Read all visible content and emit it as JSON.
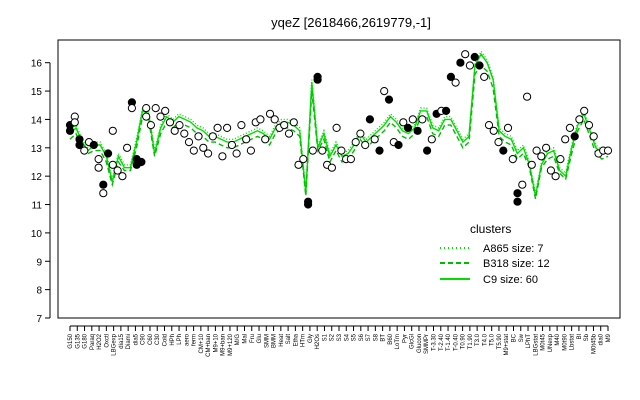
{
  "chart_data": {
    "type": "line",
    "title": "yqeZ [2618466,2619779,-1]",
    "xlabel": "",
    "ylabel": "",
    "ylim": [
      7,
      16.8
    ],
    "yticks": [
      7,
      8,
      9,
      10,
      11,
      12,
      13,
      14,
      15,
      16
    ],
    "grid": false,
    "x_tick_labels": [
      "G150",
      "G135",
      "G180",
      "Paraq",
      "H2O2",
      "Oxctl",
      "LBGexp",
      "dia15",
      "Diami",
      "dia5",
      "C90",
      "C60",
      "C30",
      "Cold",
      "HPh",
      "LPh",
      "aero",
      "ferm",
      "CM+10",
      "CM+ban",
      "M9+10",
      "M9+ban",
      "M9+120",
      "M/G",
      "Mal",
      "Fru",
      "Glu",
      "SMM",
      "BMM",
      "Heat",
      "Salt",
      "Etha",
      "HTm",
      "Gly",
      "H2Os",
      "S1",
      "S2",
      "S3",
      "S4",
      "S5",
      "S6",
      "S7",
      "S8",
      "BT",
      "B60",
      "LoTm",
      "Pyr",
      "GlcGl",
      "Glucon",
      "SMMPr",
      "T-3.30",
      "T-2.40",
      "T-1.40",
      "T-0.40",
      "T0.90",
      "T1.90",
      "T3.0",
      "T4.0",
      "T5.0",
      "T5.90",
      "M9+stat",
      "BC",
      "Sw",
      "LPhT",
      "LBGstat",
      "M0t45",
      "UNexp",
      "M40",
      "M0t90",
      "Lbstat",
      "Bl",
      "Sb",
      "M0t45b",
      "dia0",
      "M9"
    ],
    "series": [
      {
        "style": "solid",
        "color": "#00dd00",
        "values": [
          13.5,
          13.7,
          13.2,
          12.9,
          13.1,
          13.1,
          12.7,
          11.8,
          12.7,
          12.3,
          12.3,
          13.2,
          14.3,
          14.2,
          12.8,
          13.7,
          14.1,
          13.9,
          14.1,
          14.0,
          13.9,
          13.7,
          13.6,
          13.4,
          13.4,
          13.3,
          13.2,
          13.2,
          13.3,
          13.4,
          13.5,
          13.6,
          13.5,
          13.3,
          13.7,
          13.9,
          13.9,
          13.8,
          13.6,
          11.4,
          15.3,
          13.0,
          13.5,
          12.7,
          13.1,
          12.7,
          12.8,
          13.1,
          13.5,
          13.2,
          13.4,
          13.6,
          13.8,
          14.1,
          13.9,
          13.6,
          13.5,
          13.7,
          14.3,
          14.3,
          13.7,
          13.6,
          14.0,
          14.0,
          13.6,
          13.2,
          13.4,
          15.9,
          16.3,
          16.0,
          15.4,
          13.6,
          13.4,
          13.3,
          12.8,
          13.0,
          12.4,
          11.3,
          12.4,
          12.8,
          12.9,
          12.2,
          12.0,
          13.0,
          13.8,
          14.2,
          13.6,
          13.0,
          12.8,
          12.9
        ]
      },
      {
        "style": "dashed",
        "color": "#00bb00",
        "values": [
          13.3,
          13.5,
          13.0,
          12.8,
          12.9,
          12.9,
          12.5,
          11.7,
          12.5,
          12.2,
          12.2,
          13.0,
          14.1,
          14.0,
          12.7,
          13.5,
          13.9,
          13.7,
          13.9,
          13.8,
          13.7,
          13.5,
          13.4,
          13.2,
          13.2,
          13.1,
          13.0,
          13.0,
          13.1,
          13.2,
          13.3,
          13.4,
          13.3,
          13.1,
          13.5,
          13.7,
          13.7,
          13.6,
          13.4,
          11.3,
          15.0,
          12.9,
          13.3,
          12.5,
          12.9,
          12.5,
          12.6,
          12.9,
          13.3,
          13.0,
          13.2,
          13.4,
          13.6,
          13.9,
          13.7,
          13.4,
          13.3,
          13.5,
          14.1,
          14.1,
          13.5,
          13.4,
          13.8,
          13.8,
          13.4,
          13.0,
          13.2,
          15.6,
          15.9,
          15.7,
          15.1,
          13.4,
          13.2,
          13.1,
          12.6,
          12.8,
          12.3,
          11.2,
          12.3,
          12.6,
          12.7,
          12.1,
          11.9,
          12.8,
          13.6,
          14.0,
          13.4,
          12.8,
          12.6,
          12.7
        ]
      },
      {
        "style": "dotted",
        "color": "#00dd00",
        "values": [
          13.6,
          13.8,
          13.3,
          13.0,
          13.2,
          13.2,
          12.8,
          11.9,
          12.8,
          12.4,
          12.4,
          13.3,
          14.4,
          14.3,
          12.9,
          13.8,
          14.2,
          14.0,
          14.2,
          14.1,
          14.0,
          13.8,
          13.7,
          13.5,
          13.5,
          13.4,
          13.3,
          13.3,
          13.4,
          13.5,
          13.6,
          13.7,
          13.6,
          13.4,
          13.8,
          14.0,
          14.0,
          13.9,
          13.7,
          11.5,
          15.4,
          13.1,
          13.6,
          12.8,
          13.2,
          12.8,
          12.9,
          13.2,
          13.6,
          13.3,
          13.5,
          13.7,
          13.9,
          14.2,
          14.0,
          13.7,
          13.6,
          13.8,
          14.4,
          14.4,
          13.8,
          13.7,
          14.1,
          14.1,
          13.7,
          13.3,
          13.5,
          16.0,
          16.4,
          16.1,
          15.5,
          13.7,
          13.5,
          13.4,
          12.9,
          13.1,
          12.5,
          11.4,
          12.5,
          12.9,
          13.0,
          12.3,
          12.1,
          13.1,
          13.9,
          14.3,
          13.7,
          13.1,
          12.9,
          13.0
        ]
      }
    ],
    "points": [
      {
        "x": 1,
        "y": 13.8,
        "f": true
      },
      {
        "x": 1,
        "y": 13.6,
        "f": true
      },
      {
        "x": 2,
        "y": 14.1,
        "f": false
      },
      {
        "x": 2,
        "y": 13.9,
        "f": false
      },
      {
        "x": 3,
        "y": 13.1,
        "f": true
      },
      {
        "x": 3,
        "y": 13.3,
        "f": true
      },
      {
        "x": 4,
        "y": 12.9,
        "f": false
      },
      {
        "x": 5,
        "y": 13.2,
        "f": false
      },
      {
        "x": 6,
        "y": 13.1,
        "f": true
      },
      {
        "x": 7,
        "y": 12.6,
        "f": false
      },
      {
        "x": 7,
        "y": 12.3,
        "f": false
      },
      {
        "x": 8,
        "y": 11.4,
        "f": false
      },
      {
        "x": 8,
        "y": 11.7,
        "f": true
      },
      {
        "x": 9,
        "y": 12.8,
        "f": true
      },
      {
        "x": 10,
        "y": 12.4,
        "f": false
      },
      {
        "x": 10,
        "y": 13.6,
        "f": false
      },
      {
        "x": 11,
        "y": 12.2,
        "f": false
      },
      {
        "x": 12,
        "y": 12.0,
        "f": false
      },
      {
        "x": 13,
        "y": 13.0,
        "f": false
      },
      {
        "x": 14,
        "y": 14.6,
        "f": true
      },
      {
        "x": 14,
        "y": 14.4,
        "f": false
      },
      {
        "x": 15,
        "y": 12.6,
        "f": true
      },
      {
        "x": 15,
        "y": 12.4,
        "f": true
      },
      {
        "x": 16,
        "y": 12.5,
        "f": true
      },
      {
        "x": 17,
        "y": 14.4,
        "f": false
      },
      {
        "x": 17,
        "y": 14.1,
        "f": false
      },
      {
        "x": 18,
        "y": 13.8,
        "f": false
      },
      {
        "x": 19,
        "y": 14.4,
        "f": false
      },
      {
        "x": 20,
        "y": 14.1,
        "f": false
      },
      {
        "x": 21,
        "y": 14.3,
        "f": false
      },
      {
        "x": 22,
        "y": 13.9,
        "f": false
      },
      {
        "x": 23,
        "y": 13.6,
        "f": false
      },
      {
        "x": 24,
        "y": 13.8,
        "f": false
      },
      {
        "x": 25,
        "y": 13.5,
        "f": false
      },
      {
        "x": 26,
        "y": 13.2,
        "f": false
      },
      {
        "x": 27,
        "y": 12.9,
        "f": false
      },
      {
        "x": 28,
        "y": 13.4,
        "f": false
      },
      {
        "x": 29,
        "y": 13.0,
        "f": false
      },
      {
        "x": 30,
        "y": 12.8,
        "f": false
      },
      {
        "x": 31,
        "y": 13.4,
        "f": false
      },
      {
        "x": 32,
        "y": 13.7,
        "f": false
      },
      {
        "x": 33,
        "y": 12.7,
        "f": false
      },
      {
        "x": 34,
        "y": 13.7,
        "f": false
      },
      {
        "x": 35,
        "y": 13.1,
        "f": false
      },
      {
        "x": 36,
        "y": 12.8,
        "f": false
      },
      {
        "x": 37,
        "y": 13.8,
        "f": false
      },
      {
        "x": 38,
        "y": 13.3,
        "f": false
      },
      {
        "x": 39,
        "y": 12.9,
        "f": false
      },
      {
        "x": 40,
        "y": 13.9,
        "f": false
      },
      {
        "x": 41,
        "y": 14.0,
        "f": false
      },
      {
        "x": 42,
        "y": 13.3,
        "f": false
      },
      {
        "x": 43,
        "y": 14.2,
        "f": false
      },
      {
        "x": 44,
        "y": 14.0,
        "f": false
      },
      {
        "x": 45,
        "y": 13.7,
        "f": false
      },
      {
        "x": 46,
        "y": 13.8,
        "f": false
      },
      {
        "x": 47,
        "y": 13.5,
        "f": false
      },
      {
        "x": 48,
        "y": 13.9,
        "f": false
      },
      {
        "x": 49,
        "y": 12.4,
        "f": false
      },
      {
        "x": 50,
        "y": 12.6,
        "f": false
      },
      {
        "x": 51,
        "y": 11.1,
        "f": true
      },
      {
        "x": 51,
        "y": 11.0,
        "f": true
      },
      {
        "x": 52,
        "y": 12.9,
        "f": false
      },
      {
        "x": 53,
        "y": 15.5,
        "f": true
      },
      {
        "x": 53,
        "y": 15.4,
        "f": true
      },
      {
        "x": 54,
        "y": 12.9,
        "f": false
      },
      {
        "x": 55,
        "y": 12.4,
        "f": false
      },
      {
        "x": 56,
        "y": 12.3,
        "f": false
      },
      {
        "x": 57,
        "y": 13.7,
        "f": false
      },
      {
        "x": 58,
        "y": 12.9,
        "f": false
      },
      {
        "x": 59,
        "y": 12.6,
        "f": false
      },
      {
        "x": 60,
        "y": 12.6,
        "f": false
      },
      {
        "x": 61,
        "y": 13.2,
        "f": false
      },
      {
        "x": 62,
        "y": 13.5,
        "f": false
      },
      {
        "x": 63,
        "y": 13.1,
        "f": false
      },
      {
        "x": 64,
        "y": 14.0,
        "f": true
      },
      {
        "x": 65,
        "y": 13.3,
        "f": false
      },
      {
        "x": 66,
        "y": 12.9,
        "f": true
      },
      {
        "x": 67,
        "y": 15.0,
        "f": false
      },
      {
        "x": 68,
        "y": 14.7,
        "f": true
      },
      {
        "x": 69,
        "y": 13.2,
        "f": false
      },
      {
        "x": 70,
        "y": 13.1,
        "f": true
      },
      {
        "x": 71,
        "y": 13.9,
        "f": false
      },
      {
        "x": 72,
        "y": 13.7,
        "f": true
      },
      {
        "x": 73,
        "y": 14.0,
        "f": false
      },
      {
        "x": 74,
        "y": 13.6,
        "f": true
      },
      {
        "x": 75,
        "y": 14.0,
        "f": false
      },
      {
        "x": 76,
        "y": 12.9,
        "f": true
      },
      {
        "x": 77,
        "y": 13.3,
        "f": false
      },
      {
        "x": 78,
        "y": 14.2,
        "f": true
      },
      {
        "x": 79,
        "y": 14.3,
        "f": false
      },
      {
        "x": 80,
        "y": 14.3,
        "f": true
      },
      {
        "x": 81,
        "y": 15.5,
        "f": true
      },
      {
        "x": 82,
        "y": 15.3,
        "f": false
      },
      {
        "x": 83,
        "y": 16.0,
        "f": true
      },
      {
        "x": 84,
        "y": 16.3,
        "f": false
      },
      {
        "x": 85,
        "y": 15.9,
        "f": false
      },
      {
        "x": 86,
        "y": 16.2,
        "f": true
      },
      {
        "x": 87,
        "y": 15.9,
        "f": true
      },
      {
        "x": 88,
        "y": 15.5,
        "f": false
      },
      {
        "x": 89,
        "y": 13.8,
        "f": false
      },
      {
        "x": 90,
        "y": 13.6,
        "f": false
      },
      {
        "x": 91,
        "y": 13.2,
        "f": false
      },
      {
        "x": 92,
        "y": 12.9,
        "f": true
      },
      {
        "x": 93,
        "y": 13.7,
        "f": false
      },
      {
        "x": 94,
        "y": 12.6,
        "f": false
      },
      {
        "x": 95,
        "y": 11.4,
        "f": true
      },
      {
        "x": 95,
        "y": 11.1,
        "f": true
      },
      {
        "x": 96,
        "y": 11.7,
        "f": false
      },
      {
        "x": 97,
        "y": 14.8,
        "f": false
      },
      {
        "x": 98,
        "y": 12.4,
        "f": false
      },
      {
        "x": 99,
        "y": 12.9,
        "f": false
      },
      {
        "x": 100,
        "y": 12.7,
        "f": false
      },
      {
        "x": 101,
        "y": 13.0,
        "f": false
      },
      {
        "x": 102,
        "y": 12.2,
        "f": false
      },
      {
        "x": 103,
        "y": 12.0,
        "f": false
      },
      {
        "x": 104,
        "y": 12.6,
        "f": false
      },
      {
        "x": 105,
        "y": 13.3,
        "f": false
      },
      {
        "x": 106,
        "y": 13.7,
        "f": false
      },
      {
        "x": 107,
        "y": 13.4,
        "f": true
      },
      {
        "x": 108,
        "y": 14.0,
        "f": false
      },
      {
        "x": 109,
        "y": 14.3,
        "f": false
      },
      {
        "x": 110,
        "y": 13.8,
        "f": false
      },
      {
        "x": 111,
        "y": 13.4,
        "f": false
      },
      {
        "x": 112,
        "y": 12.8,
        "f": false
      },
      {
        "x": 113,
        "y": 12.9,
        "f": false
      },
      {
        "x": 114,
        "y": 12.9,
        "f": false
      }
    ],
    "legend": {
      "title": "clusters",
      "position": "bottom-right",
      "entries": [
        {
          "label": "A865 size: 7",
          "style": "dotted"
        },
        {
          "label": "B318 size: 12",
          "style": "dashed"
        },
        {
          "label": "C9 size: 60",
          "style": "solid"
        }
      ]
    }
  }
}
